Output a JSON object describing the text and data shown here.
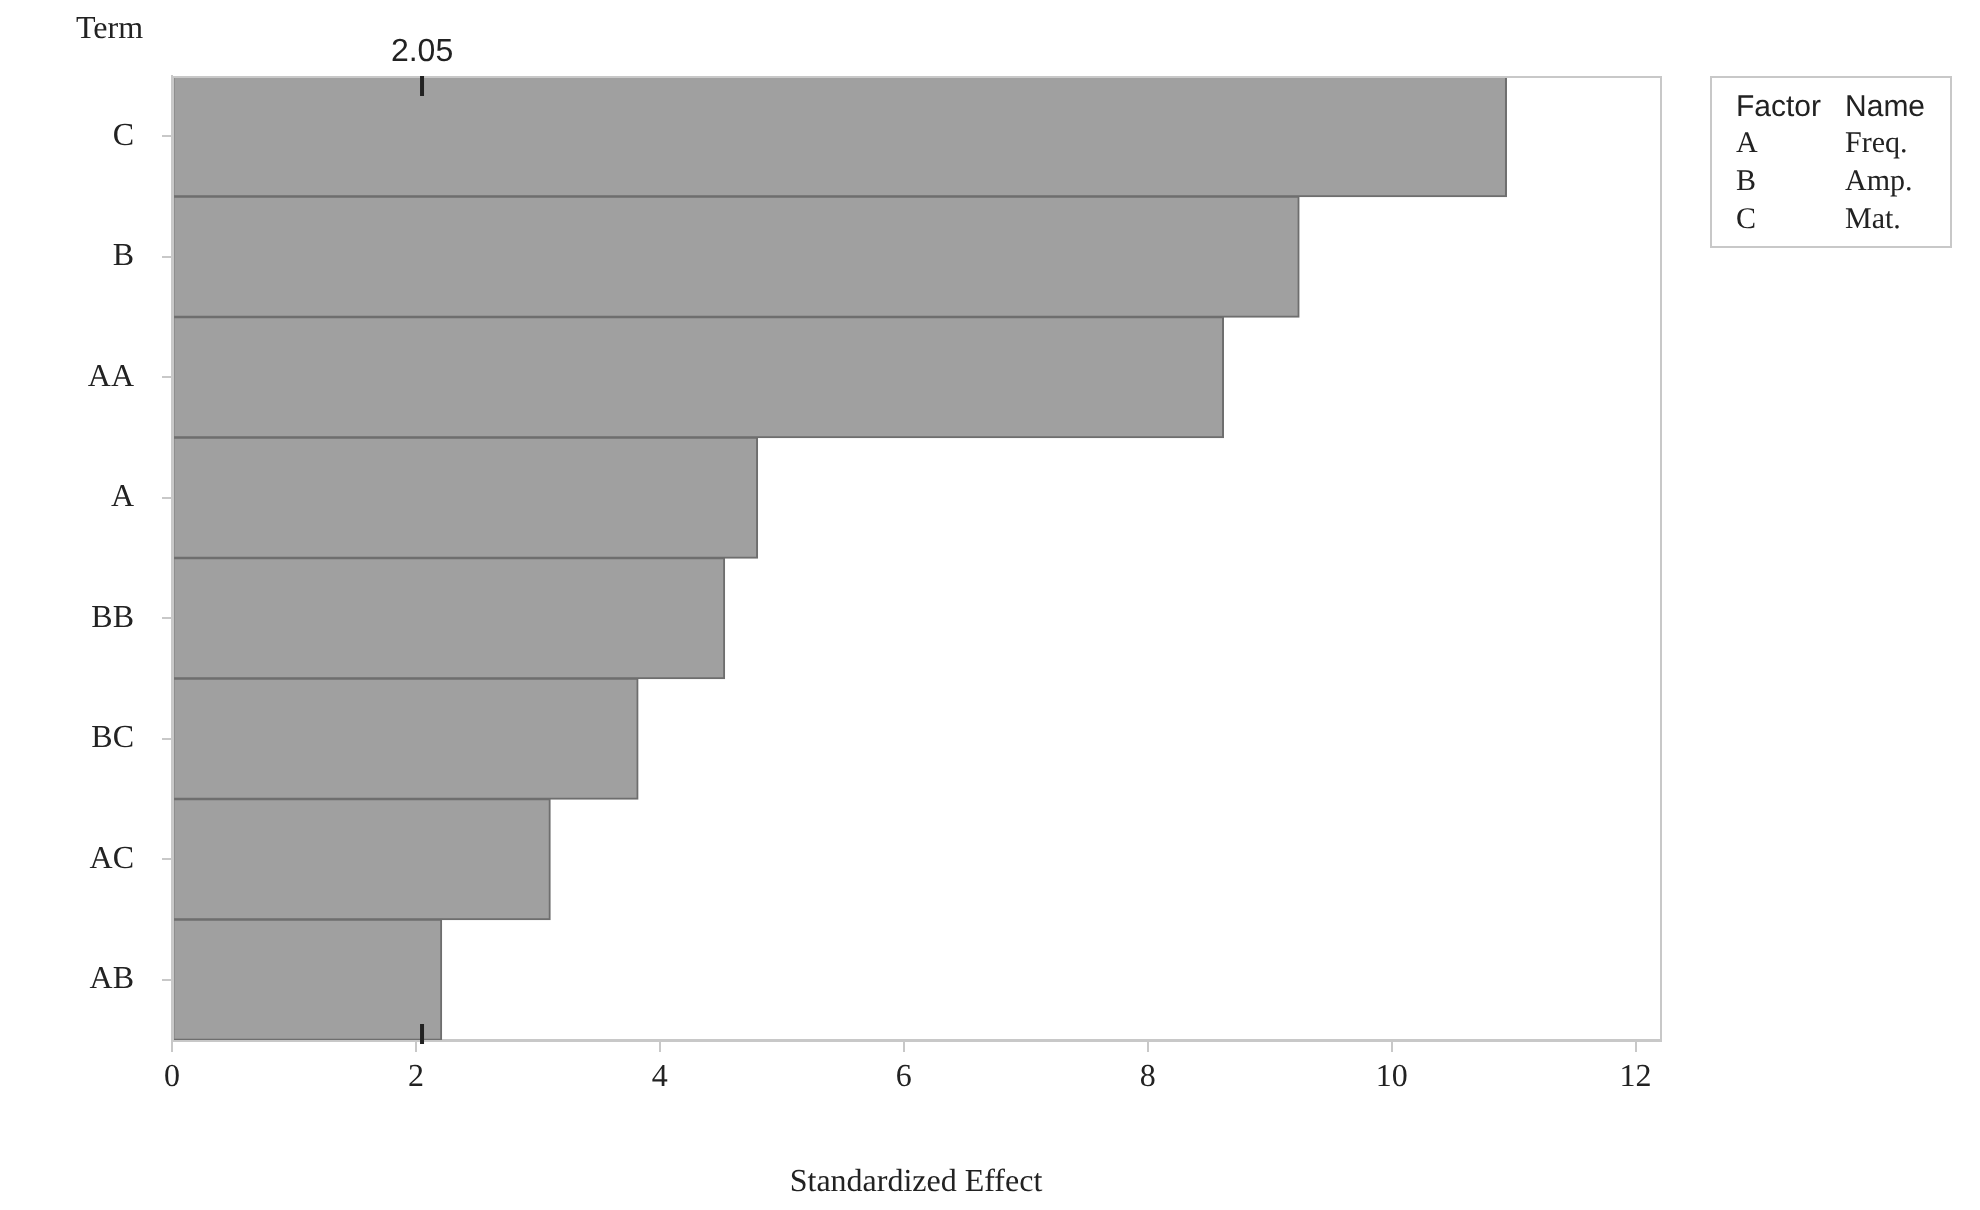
{
  "chart_data": {
    "type": "bar",
    "orientation": "horizontal",
    "xlabel": "Standardized Effect",
    "ylabel": "Term",
    "categories": [
      "C",
      "B",
      "AA",
      "A",
      "BB",
      "BC",
      "AC",
      "AB"
    ],
    "values": [
      10.94,
      9.24,
      8.62,
      4.8,
      4.53,
      3.82,
      3.1,
      2.21
    ],
    "color": "#a0a0a0",
    "xlim": [
      0,
      12.2
    ],
    "xticks": [
      0,
      2,
      4,
      6,
      8,
      10,
      12
    ],
    "grid": false,
    "ref_lines": [
      {
        "axis": "x",
        "value": 2.05,
        "label": "2.05"
      }
    ],
    "annotations": [
      "Factor",
      "Name",
      "A",
      "Freq.",
      "B",
      "Amp.",
      "C",
      "Mat."
    ]
  }
}
